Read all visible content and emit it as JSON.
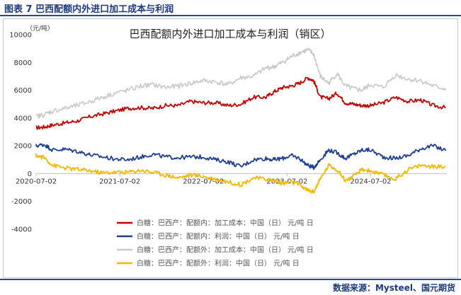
{
  "header": {
    "figure_label": "图表 7  巴西配额内外进口加工成本与利润"
  },
  "footer": {
    "source": "数据来源：Mysteel、国元期货"
  },
  "chart_data": {
    "type": "line",
    "title": "巴西配额内外进口加工成本与利润（销区）",
    "unit_label": "（元/吨）",
    "ylim": [
      -4000,
      10000
    ],
    "yticks": [
      10000,
      8000,
      6000,
      4000,
      2000,
      0,
      -2000,
      -4000
    ],
    "ytick_labels": [
      "10000",
      "8000",
      "6000",
      "4000",
      "2000",
      "0",
      "-2000",
      "-4000"
    ],
    "xlim": [
      "2020-07-02",
      "2025-05-30"
    ],
    "xticks": [
      "2020-07-02",
      "2021-07-02",
      "2022-07-02",
      "2023-07-02",
      "2024-07-02"
    ],
    "legend_position": "bottom",
    "series": [
      {
        "name": "白糖：巴西产：配额内：加工成本：中国（日）  元/吨  日",
        "color": "#c00000",
        "x": [
          2020.5,
          2020.6,
          2020.7,
          2020.85,
          2021.0,
          2021.15,
          2021.3,
          2021.45,
          2021.6,
          2021.75,
          2021.9,
          2022.05,
          2022.2,
          2022.35,
          2022.5,
          2022.65,
          2022.8,
          2022.95,
          2023.1,
          2023.25,
          2023.35,
          2023.45,
          2023.55,
          2023.65,
          2023.75,
          2023.82,
          2023.9,
          2024.0,
          2024.1,
          2024.2,
          2024.3,
          2024.4,
          2024.5,
          2024.65,
          2024.8,
          2024.95,
          2025.1,
          2025.25,
          2025.4
        ],
        "values": [
          3300,
          3350,
          3500,
          3650,
          3800,
          4100,
          4300,
          4500,
          4700,
          4750,
          4700,
          4900,
          4900,
          5200,
          5100,
          5100,
          4900,
          5000,
          5500,
          5500,
          5900,
          6200,
          6300,
          6500,
          6900,
          6700,
          5500,
          5400,
          5800,
          5100,
          5000,
          4900,
          4900,
          5100,
          5500,
          5200,
          5300,
          4900,
          4750
        ]
      },
      {
        "name": "白糖：巴西产：配额内：利润：中国（日）  元/吨  日",
        "color": "#1f3f8f",
        "x": [
          2020.5,
          2020.6,
          2020.7,
          2020.85,
          2021.0,
          2021.15,
          2021.3,
          2021.45,
          2021.6,
          2021.75,
          2021.9,
          2022.05,
          2022.2,
          2022.35,
          2022.5,
          2022.65,
          2022.8,
          2022.95,
          2023.1,
          2023.25,
          2023.35,
          2023.45,
          2023.55,
          2023.65,
          2023.75,
          2023.82,
          2023.9,
          2024.0,
          2024.1,
          2024.2,
          2024.3,
          2024.4,
          2024.5,
          2024.65,
          2024.8,
          2024.95,
          2025.1,
          2025.25,
          2025.4
        ],
        "values": [
          2000,
          2100,
          1700,
          1750,
          1600,
          1350,
          1200,
          1050,
          1000,
          1200,
          1400,
          1200,
          1150,
          1200,
          1200,
          1000,
          850,
          500,
          1000,
          1100,
          1000,
          1100,
          1300,
          1100,
          600,
          450,
          1000,
          1700,
          1500,
          1100,
          1400,
          1700,
          1700,
          1200,
          1100,
          1300,
          1800,
          2000,
          1650
        ]
      },
      {
        "name": "白糖：巴西产：配额外：加工成本：中国（日）  元/吨  日",
        "color": "#c8c8c8",
        "x": [
          2020.5,
          2020.6,
          2020.7,
          2020.85,
          2021.0,
          2021.15,
          2021.3,
          2021.45,
          2021.6,
          2021.75,
          2021.9,
          2022.05,
          2022.2,
          2022.35,
          2022.5,
          2022.65,
          2022.8,
          2022.95,
          2023.1,
          2023.25,
          2023.35,
          2023.45,
          2023.55,
          2023.65,
          2023.75,
          2023.82,
          2023.9,
          2024.0,
          2024.1,
          2024.2,
          2024.3,
          2024.4,
          2024.5,
          2024.65,
          2024.8,
          2024.95,
          2025.1,
          2025.25,
          2025.4
        ],
        "values": [
          4100,
          4250,
          4500,
          4700,
          4900,
          5200,
          5500,
          5800,
          6000,
          6300,
          6400,
          6200,
          6300,
          6500,
          6700,
          6600,
          6400,
          6900,
          7000,
          7600,
          7700,
          8000,
          8400,
          8700,
          8900,
          8600,
          7000,
          6500,
          7200,
          6300,
          6100,
          6000,
          6400,
          6200,
          7100,
          6800,
          6700,
          6300,
          6100
        ]
      },
      {
        "name": "白糖：巴西产：配额外：利润：中国（日）  元/吨  日",
        "color": "#f2b800",
        "x": [
          2020.5,
          2020.6,
          2020.7,
          2020.85,
          2021.0,
          2021.15,
          2021.3,
          2021.45,
          2021.6,
          2021.75,
          2021.9,
          2022.05,
          2022.2,
          2022.35,
          2022.5,
          2022.65,
          2022.8,
          2022.95,
          2023.1,
          2023.25,
          2023.35,
          2023.45,
          2023.55,
          2023.65,
          2023.75,
          2023.82,
          2023.9,
          2024.0,
          2024.1,
          2024.2,
          2024.3,
          2024.4,
          2024.5,
          2024.65,
          2024.8,
          2024.95,
          2025.1,
          2025.25,
          2025.4
        ],
        "values": [
          1300,
          1150,
          600,
          400,
          300,
          200,
          50,
          100,
          100,
          250,
          100,
          -100,
          -300,
          -100,
          -200,
          -400,
          -600,
          -800,
          -300,
          -400,
          -500,
          -700,
          -600,
          -800,
          -1200,
          -1300,
          -400,
          600,
          300,
          -500,
          -200,
          300,
          200,
          -100,
          -400,
          300,
          600,
          500,
          500
        ]
      }
    ]
  }
}
